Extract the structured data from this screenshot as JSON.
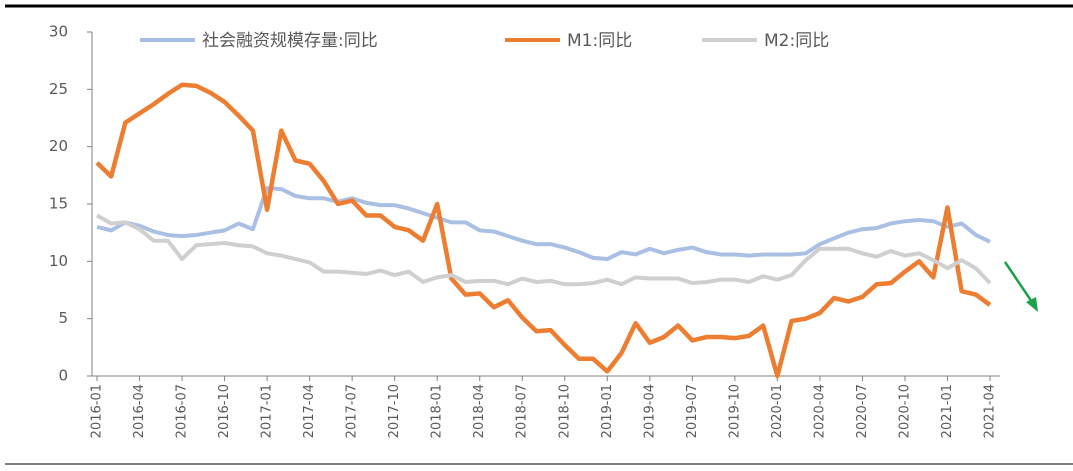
{
  "chart_data": {
    "type": "line",
    "categories": [
      "2016-01",
      null,
      null,
      "2016-04",
      null,
      null,
      "2016-07",
      null,
      null,
      "2016-10",
      null,
      null,
      "2017-01",
      null,
      null,
      "2017-04",
      null,
      null,
      "2017-07",
      null,
      null,
      "2017-10",
      null,
      null,
      "2018-01",
      null,
      null,
      "2018-04",
      null,
      null,
      "2018-07",
      null,
      null,
      "2018-10",
      null,
      null,
      "2019-01",
      null,
      null,
      "2019-04",
      null,
      null,
      "2019-07",
      null,
      null,
      "2019-10",
      null,
      null,
      "2020-01",
      null,
      null,
      "2020-04",
      null,
      null,
      "2020-07",
      null,
      null,
      "2020-10",
      null,
      null,
      "2021-01",
      null,
      null,
      "2021-04"
    ],
    "series": [
      {
        "name": "社会融资规模存量:同比",
        "color": "#a9c0e4",
        "values": [
          13.0,
          12.7,
          13.4,
          13.1,
          12.6,
          12.3,
          12.2,
          12.3,
          12.5,
          12.7,
          13.3,
          12.8,
          16.4,
          16.3,
          15.7,
          15.5,
          15.5,
          15.2,
          15.5,
          15.1,
          14.9,
          14.9,
          14.6,
          14.2,
          13.8,
          13.4,
          13.4,
          12.7,
          12.6,
          12.2,
          11.8,
          11.5,
          11.5,
          11.2,
          10.8,
          10.3,
          10.2,
          10.8,
          10.6,
          11.1,
          10.7,
          11.0,
          11.2,
          10.8,
          10.6,
          10.6,
          10.5,
          10.6,
          10.6,
          10.6,
          10.7,
          11.5,
          12.0,
          12.5,
          12.8,
          12.9,
          13.3,
          13.5,
          13.6,
          13.5,
          13.0,
          13.3,
          12.3,
          11.7
        ]
      },
      {
        "name": "M1:同比",
        "color": "#ed7d31",
        "values": [
          18.6,
          17.4,
          22.1,
          22.9,
          23.7,
          24.6,
          25.4,
          25.3,
          24.7,
          23.9,
          22.7,
          21.4,
          14.5,
          21.4,
          18.8,
          18.5,
          17.0,
          15.0,
          15.3,
          14.0,
          14.0,
          13.0,
          12.7,
          11.8,
          15.0,
          8.5,
          7.1,
          7.2,
          6.0,
          6.6,
          5.1,
          3.9,
          4.0,
          2.7,
          1.5,
          1.5,
          0.4,
          2.0,
          4.6,
          2.9,
          3.4,
          4.4,
          3.1,
          3.4,
          3.4,
          3.3,
          3.5,
          4.4,
          0.0,
          4.8,
          5.0,
          5.5,
          6.8,
          6.5,
          6.9,
          8.0,
          8.1,
          9.1,
          10.0,
          8.6,
          14.7,
          7.4,
          7.1,
          6.2
        ]
      },
      {
        "name": "M2:同比",
        "color": "#cfcfcf",
        "values": [
          14.0,
          13.3,
          13.4,
          12.8,
          11.8,
          11.8,
          10.2,
          11.4,
          11.5,
          11.6,
          11.4,
          11.3,
          10.7,
          10.5,
          10.2,
          9.9,
          9.1,
          9.1,
          9.0,
          8.9,
          9.2,
          8.8,
          9.1,
          8.2,
          8.6,
          8.8,
          8.2,
          8.3,
          8.3,
          8.0,
          8.5,
          8.2,
          8.3,
          8.0,
          8.0,
          8.1,
          8.4,
          8.0,
          8.6,
          8.5,
          8.5,
          8.5,
          8.1,
          8.2,
          8.4,
          8.4,
          8.2,
          8.7,
          8.4,
          8.8,
          10.1,
          11.1,
          11.1,
          11.1,
          10.7,
          10.4,
          10.9,
          10.5,
          10.7,
          10.1,
          9.4,
          10.1,
          9.4,
          8.1
        ]
      }
    ],
    "ylim": [
      0,
      30
    ],
    "yticks": [
      0,
      5,
      10,
      15,
      20,
      25,
      30
    ],
    "grid": false,
    "legend": "top"
  }
}
